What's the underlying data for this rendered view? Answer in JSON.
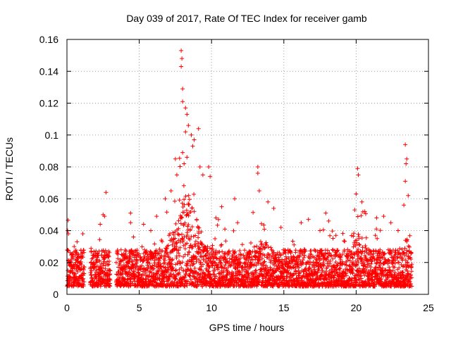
{
  "chart_data": {
    "type": "scatter",
    "title": "Day 039 of 2017, Rate Of TEC Index for receiver gamb",
    "xlabel": "GPS time / hours",
    "ylabel": "ROTI / TECUs",
    "xlim": [
      0,
      25
    ],
    "ylim": [
      0,
      0.16
    ],
    "xticks": [
      0,
      5,
      10,
      15,
      20,
      25
    ],
    "xtick_labels": [
      "0",
      "5",
      "10",
      "15",
      "20",
      "25"
    ],
    "yticks": [
      0,
      0.02,
      0.04,
      0.06,
      0.08,
      0.1,
      0.12,
      0.14,
      0.16
    ],
    "ytick_labels": [
      "0",
      "0.02",
      "0.04",
      "0.06",
      "0.08",
      "0.1",
      "0.12",
      "0.14",
      "0.16"
    ],
    "grid": true,
    "marker": "+",
    "color": "#ff0000",
    "series": [
      {
        "name": "ROTI",
        "highlight_points": [
          [
            0.05,
            0.04
          ],
          [
            0.1,
            0.038
          ],
          [
            0.5,
            0.03
          ],
          [
            0.7,
            0.033
          ],
          [
            1.1,
            0.038
          ],
          [
            2.3,
            0.044
          ],
          [
            2.5,
            0.05
          ],
          [
            2.6,
            0.049
          ],
          [
            2.7,
            0.064
          ],
          [
            4.4,
            0.045
          ],
          [
            4.4,
            0.051
          ],
          [
            4.6,
            0.036
          ],
          [
            5.3,
            0.044
          ],
          [
            5.8,
            0.04
          ],
          [
            6.2,
            0.049
          ],
          [
            6.8,
            0.06
          ],
          [
            7.2,
            0.065
          ],
          [
            7.5,
            0.085
          ],
          [
            7.6,
            0.075
          ],
          [
            7.9,
            0.153
          ],
          [
            7.95,
            0.148
          ],
          [
            7.9,
            0.143
          ],
          [
            8.0,
            0.129
          ],
          [
            8.0,
            0.121
          ],
          [
            8.2,
            0.117
          ],
          [
            8.3,
            0.113
          ],
          [
            8.4,
            0.106
          ],
          [
            8.2,
            0.102
          ],
          [
            8.6,
            0.1
          ],
          [
            8.8,
            0.097
          ],
          [
            8.7,
            0.093
          ],
          [
            9.1,
            0.104
          ],
          [
            9.2,
            0.08
          ],
          [
            9.4,
            0.075
          ],
          [
            8.0,
            0.089
          ],
          [
            8.3,
            0.086
          ],
          [
            8.1,
            0.082
          ],
          [
            9.8,
            0.08
          ],
          [
            9.9,
            0.074
          ],
          [
            10.3,
            0.048
          ],
          [
            10.7,
            0.055
          ],
          [
            11.6,
            0.06
          ],
          [
            11.8,
            0.045
          ],
          [
            13.2,
            0.08
          ],
          [
            13.2,
            0.076
          ],
          [
            13.3,
            0.065
          ],
          [
            13.9,
            0.058
          ],
          [
            14.3,
            0.054
          ],
          [
            14.8,
            0.042
          ],
          [
            16.2,
            0.045
          ],
          [
            16.7,
            0.047
          ],
          [
            17.5,
            0.04
          ],
          [
            17.9,
            0.051
          ],
          [
            18.1,
            0.046
          ],
          [
            18.6,
            0.037
          ],
          [
            19.9,
            0.053
          ],
          [
            20.1,
            0.079
          ],
          [
            20.15,
            0.075
          ],
          [
            20.0,
            0.063
          ],
          [
            20.4,
            0.058
          ],
          [
            20.6,
            0.052
          ],
          [
            21.4,
            0.041
          ],
          [
            21.9,
            0.049
          ],
          [
            22.4,
            0.045
          ],
          [
            22.9,
            0.04
          ],
          [
            23.4,
            0.094
          ],
          [
            23.5,
            0.085
          ],
          [
            23.45,
            0.082
          ],
          [
            23.4,
            0.071
          ],
          [
            23.6,
            0.062
          ],
          [
            23.3,
            0.056
          ]
        ],
        "data_gaps_hours": [
          [
            1.2,
            1.6
          ],
          [
            3.0,
            3.4
          ]
        ],
        "typical_band": [
          0.005,
          0.03
        ]
      }
    ]
  }
}
